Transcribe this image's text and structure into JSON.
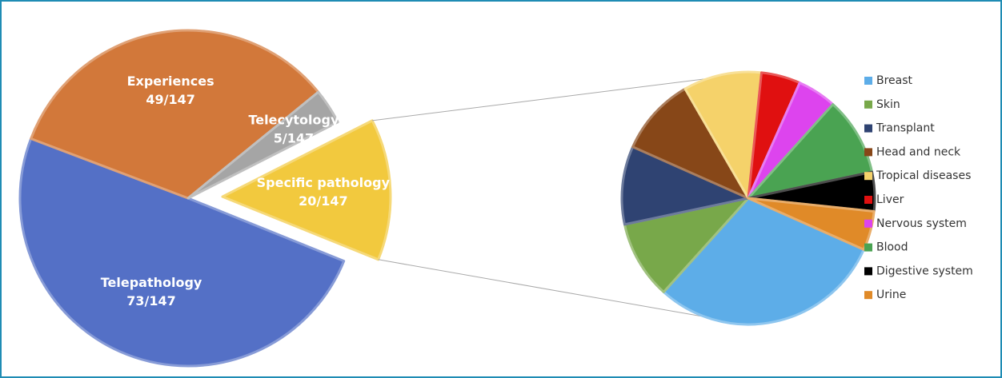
{
  "chart_data": [
    {
      "type": "pie",
      "categories": [
        "Telepathology",
        "Experiences",
        "Telecytology",
        "Specific pathology"
      ],
      "values": [
        73,
        49,
        5,
        20
      ],
      "value_labels": [
        "73/147",
        "49/147",
        "5/147",
        "20/147"
      ],
      "colors": [
        "#5470c6",
        "#d2783a",
        "#a5a5a5",
        "#f2c93e"
      ],
      "exploded": "Specific pathology"
    },
    {
      "type": "pie",
      "categories": [
        "Breast",
        "Skin",
        "Transplant",
        "Head and neck",
        "Tropical diseases",
        "Liver",
        "Nervous system",
        "Blood",
        "Digestive system",
        "Urine"
      ],
      "values": [
        6,
        2,
        2,
        2,
        2,
        1,
        1,
        2,
        1,
        1
      ],
      "colors": [
        "#5dade8",
        "#78a84a",
        "#2f4372",
        "#874718",
        "#f5d26a",
        "#e01010",
        "#dd44ee",
        "#4aa352",
        "#000000",
        "#e08a28"
      ],
      "legend": "right"
    }
  ]
}
